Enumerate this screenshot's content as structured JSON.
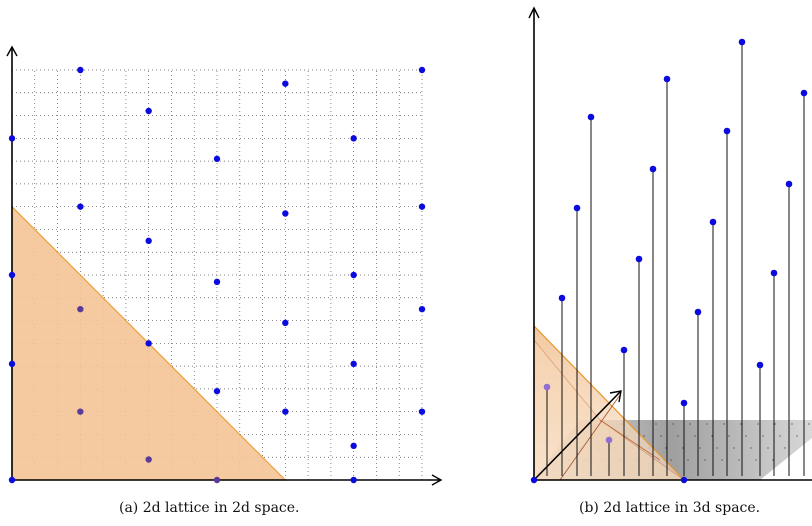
{
  "figures": {
    "a": {
      "caption": "(a) 2d lattice in 2d space.",
      "grid_step": 0.333333,
      "range": [
        0,
        6
      ],
      "lattice_points": [
        [
          0,
          0
        ],
        [
          3,
          0
        ],
        [
          5,
          0
        ],
        [
          1,
          3
        ],
        [
          3,
          2
        ],
        [
          5,
          1
        ],
        [
          2,
          3
        ],
        [
          4,
          2
        ],
        [
          6,
          1
        ],
        [
          0,
          2
        ],
        [
          2,
          1
        ],
        [
          4,
          0
        ],
        [
          1,
          1
        ],
        [
          3,
          0.5
        ],
        [
          5,
          1.5
        ],
        [
          0,
          4
        ],
        [
          2,
          5
        ],
        [
          4,
          4
        ],
        [
          6,
          4
        ],
        [
          4,
          5
        ],
        [
          3,
          3
        ],
        [
          5,
          4
        ],
        [
          1,
          6
        ],
        [
          6,
          6
        ],
        [
          3,
          5
        ],
        [
          2,
          5.5
        ],
        [
          6,
          3
        ],
        [
          3,
          1.3
        ],
        [
          5,
          6
        ]
      ],
      "region_vertices": [
        [
          0,
          0
        ],
        [
          0,
          4
        ],
        [
          4,
          0
        ]
      ]
    },
    "b": {
      "caption": "(b) 2d lattice in 3d space.",
      "stem_heights": [
        0.13,
        0.24,
        0.36,
        0.48,
        0.6,
        0.72,
        0.84,
        0.96,
        1.08,
        1.2,
        0.33,
        0.45,
        0.57,
        0.69,
        0.81,
        0.93,
        1.05,
        1.17,
        0.24,
        0.35,
        0.47,
        0.59
      ]
    }
  },
  "colors": {
    "point": "#0b0bdd",
    "region_fill": "#f6c596",
    "region_stroke": "#e8962e",
    "axis": "#000000"
  }
}
